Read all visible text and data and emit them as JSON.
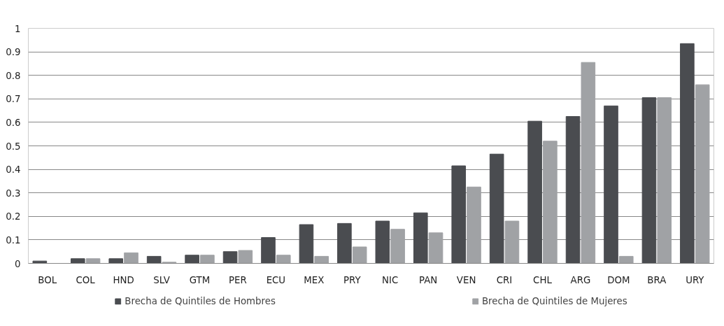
{
  "chart_data": {
    "type": "bar",
    "categories": [
      "BOL",
      "COL",
      "HND",
      "SLV",
      "GTM",
      "PER",
      "ECU",
      "MEX",
      "PRY",
      "NIC",
      "PAN",
      "VEN",
      "CRI",
      "CHL",
      "ARG",
      "DOM",
      "BRA",
      "URY"
    ],
    "series": [
      {
        "name": "Brecha de Quintiles de Hombres",
        "color": "#4a4c50",
        "values": [
          0.01,
          0.02,
          0.02,
          0.03,
          0.035,
          0.05,
          0.11,
          0.165,
          0.17,
          0.18,
          0.215,
          0.415,
          0.465,
          0.605,
          0.625,
          0.67,
          0.705,
          0.935
        ]
      },
      {
        "name": "Brecha de Quintiles de Mujeres",
        "color": "#a0a2a5",
        "values": [
          0.0,
          0.02,
          0.045,
          0.005,
          0.035,
          0.055,
          0.035,
          0.03,
          0.07,
          0.145,
          0.13,
          0.325,
          0.18,
          0.52,
          0.855,
          0.03,
          0.705,
          0.76
        ]
      }
    ],
    "ylim": [
      0,
      1
    ],
    "yticks": [
      0,
      0.1,
      0.2,
      0.3,
      0.4,
      0.5,
      0.6,
      0.7,
      0.8,
      0.9,
      1
    ],
    "grid": "y",
    "legend": "bottom"
  }
}
